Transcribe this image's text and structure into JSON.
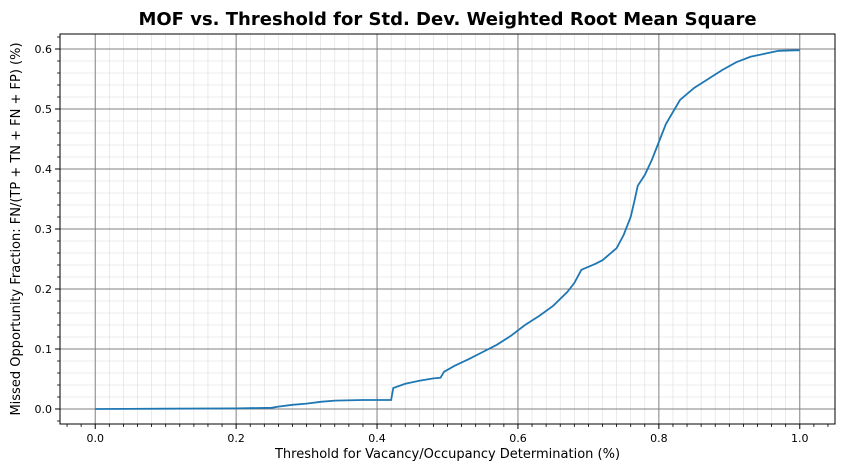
{
  "chart_data": {
    "type": "line",
    "title": "MOF vs. Threshold for Std. Dev. Weighted Root Mean Square",
    "xlabel": "Threshold for Vacancy/Occupancy Determination (%)",
    "ylabel": "Missed Opportunity Fraction: FN/(TP + TN + FN + FP) (%)",
    "xlim": [
      -0.05,
      1.05
    ],
    "ylim": [
      -0.025,
      0.625
    ],
    "x_ticks": [
      0.0,
      0.2,
      0.4,
      0.6,
      0.8,
      1.0
    ],
    "x_tick_labels": [
      "0.0",
      "0.2",
      "0.4",
      "0.6",
      "0.8",
      "1.0"
    ],
    "y_ticks": [
      0.0,
      0.1,
      0.2,
      0.3,
      0.4,
      0.5,
      0.6
    ],
    "y_tick_labels": [
      "0.0",
      "0.1",
      "0.2",
      "0.3",
      "0.4",
      "0.5",
      "0.6"
    ],
    "grid": true,
    "minor_grid": true,
    "series": [
      {
        "color": "#1f77b4",
        "points": [
          [
            0.0,
            0.0
          ],
          [
            0.1,
            0.0005
          ],
          [
            0.2,
            0.001
          ],
          [
            0.25,
            0.002
          ],
          [
            0.26,
            0.004
          ],
          [
            0.28,
            0.007
          ],
          [
            0.3,
            0.009
          ],
          [
            0.32,
            0.012
          ],
          [
            0.34,
            0.014
          ],
          [
            0.38,
            0.015
          ],
          [
            0.42,
            0.015
          ],
          [
            0.423,
            0.035
          ],
          [
            0.44,
            0.042
          ],
          [
            0.46,
            0.047
          ],
          [
            0.48,
            0.051
          ],
          [
            0.49,
            0.052
          ],
          [
            0.495,
            0.062
          ],
          [
            0.51,
            0.072
          ],
          [
            0.53,
            0.083
          ],
          [
            0.55,
            0.095
          ],
          [
            0.57,
            0.107
          ],
          [
            0.59,
            0.122
          ],
          [
            0.61,
            0.14
          ],
          [
            0.63,
            0.155
          ],
          [
            0.65,
            0.172
          ],
          [
            0.67,
            0.195
          ],
          [
            0.68,
            0.21
          ],
          [
            0.69,
            0.232
          ],
          [
            0.71,
            0.242
          ],
          [
            0.72,
            0.248
          ],
          [
            0.74,
            0.268
          ],
          [
            0.75,
            0.29
          ],
          [
            0.76,
            0.32
          ],
          [
            0.765,
            0.345
          ],
          [
            0.77,
            0.372
          ],
          [
            0.78,
            0.39
          ],
          [
            0.79,
            0.415
          ],
          [
            0.8,
            0.445
          ],
          [
            0.81,
            0.475
          ],
          [
            0.82,
            0.495
          ],
          [
            0.83,
            0.515
          ],
          [
            0.85,
            0.535
          ],
          [
            0.87,
            0.55
          ],
          [
            0.89,
            0.565
          ],
          [
            0.91,
            0.578
          ],
          [
            0.93,
            0.587
          ],
          [
            0.95,
            0.592
          ],
          [
            0.97,
            0.597
          ],
          [
            1.0,
            0.598
          ]
        ]
      }
    ]
  }
}
